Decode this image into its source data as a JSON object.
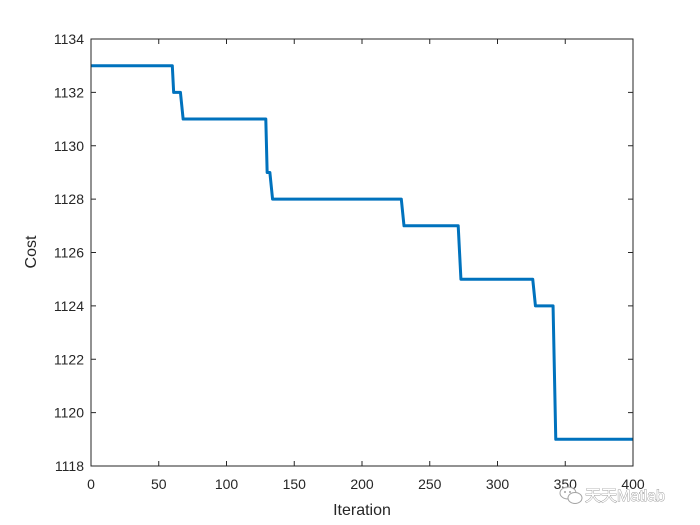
{
  "chart_data": {
    "type": "line",
    "title": "",
    "xlabel": "Iteration",
    "ylabel": "Cost",
    "xlim": [
      0,
      400
    ],
    "ylim": [
      1118,
      1134
    ],
    "xticks": [
      0,
      50,
      100,
      150,
      200,
      250,
      300,
      350,
      400
    ],
    "yticks": [
      1118,
      1120,
      1122,
      1124,
      1126,
      1128,
      1130,
      1132,
      1134
    ],
    "grid": false,
    "legend": "none",
    "series": [
      {
        "color": "#0072bd",
        "x": [
          0,
          60,
          61,
          66,
          68,
          129,
          130,
          132,
          134,
          229,
          231,
          271,
          273,
          326,
          328,
          341,
          343,
          400
        ],
        "y": [
          1133,
          1133,
          1132,
          1132,
          1131,
          1131,
          1129,
          1129,
          1128,
          1128,
          1127,
          1127,
          1125,
          1125,
          1124,
          1124,
          1119,
          1119
        ]
      }
    ]
  },
  "watermark": {
    "text": "天天Matlab",
    "icon": "wechat-icon"
  }
}
